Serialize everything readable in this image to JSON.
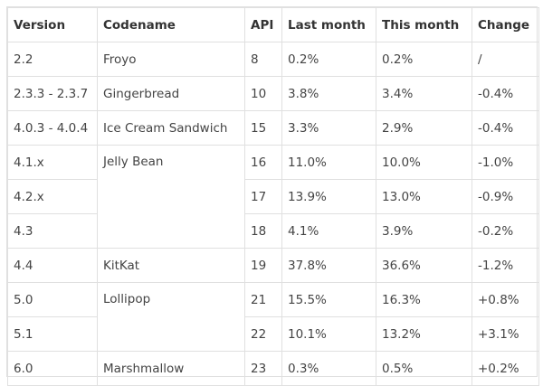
{
  "table": {
    "headers": [
      "Version",
      "Codename",
      "API",
      "Last month",
      "This month",
      "Change"
    ],
    "rows": [
      {
        "version": "2.2",
        "codename": "Froyo",
        "api": "8",
        "last_month": "0.2%",
        "this_month": "0.2%",
        "change": "/"
      },
      {
        "version": "2.3.3 - 2.3.7",
        "codename": "Gingerbread",
        "api": "10",
        "last_month": "3.8%",
        "this_month": "3.4%",
        "change": "-0.4%"
      },
      {
        "version": "4.0.3 - 4.0.4",
        "codename": "Ice Cream Sandwich",
        "api": "15",
        "last_month": "3.3%",
        "this_month": "2.9%",
        "change": "-0.4%"
      },
      {
        "version": "4.1.x",
        "codename": "Jelly Bean",
        "api": "16",
        "last_month": "11.0%",
        "this_month": "10.0%",
        "change": "-1.0%"
      },
      {
        "version": "4.2.x",
        "codename": "",
        "api": "17",
        "last_month": "13.9%",
        "this_month": "13.0%",
        "change": "-0.9%"
      },
      {
        "version": "4.3",
        "codename": "",
        "api": "18",
        "last_month": "4.1%",
        "this_month": "3.9%",
        "change": "-0.2%"
      },
      {
        "version": "4.4",
        "codename": "KitKat",
        "api": "19",
        "last_month": "37.8%",
        "this_month": "36.6%",
        "change": "-1.2%"
      },
      {
        "version": "5.0",
        "codename": "Lollipop",
        "api": "21",
        "last_month": "15.5%",
        "this_month": "16.3%",
        "change": "+0.8%"
      },
      {
        "version": "5.1",
        "codename": "",
        "api": "22",
        "last_month": "10.1%",
        "this_month": "13.2%",
        "change": "+3.1%"
      },
      {
        "version": "6.0",
        "codename": "Marshmallow",
        "api": "23",
        "last_month": "0.3%",
        "this_month": "0.5%",
        "change": "+0.2%"
      }
    ]
  },
  "colors": {
    "border": "#e0e0e0",
    "text": "#444444",
    "header_text": "#333333"
  }
}
